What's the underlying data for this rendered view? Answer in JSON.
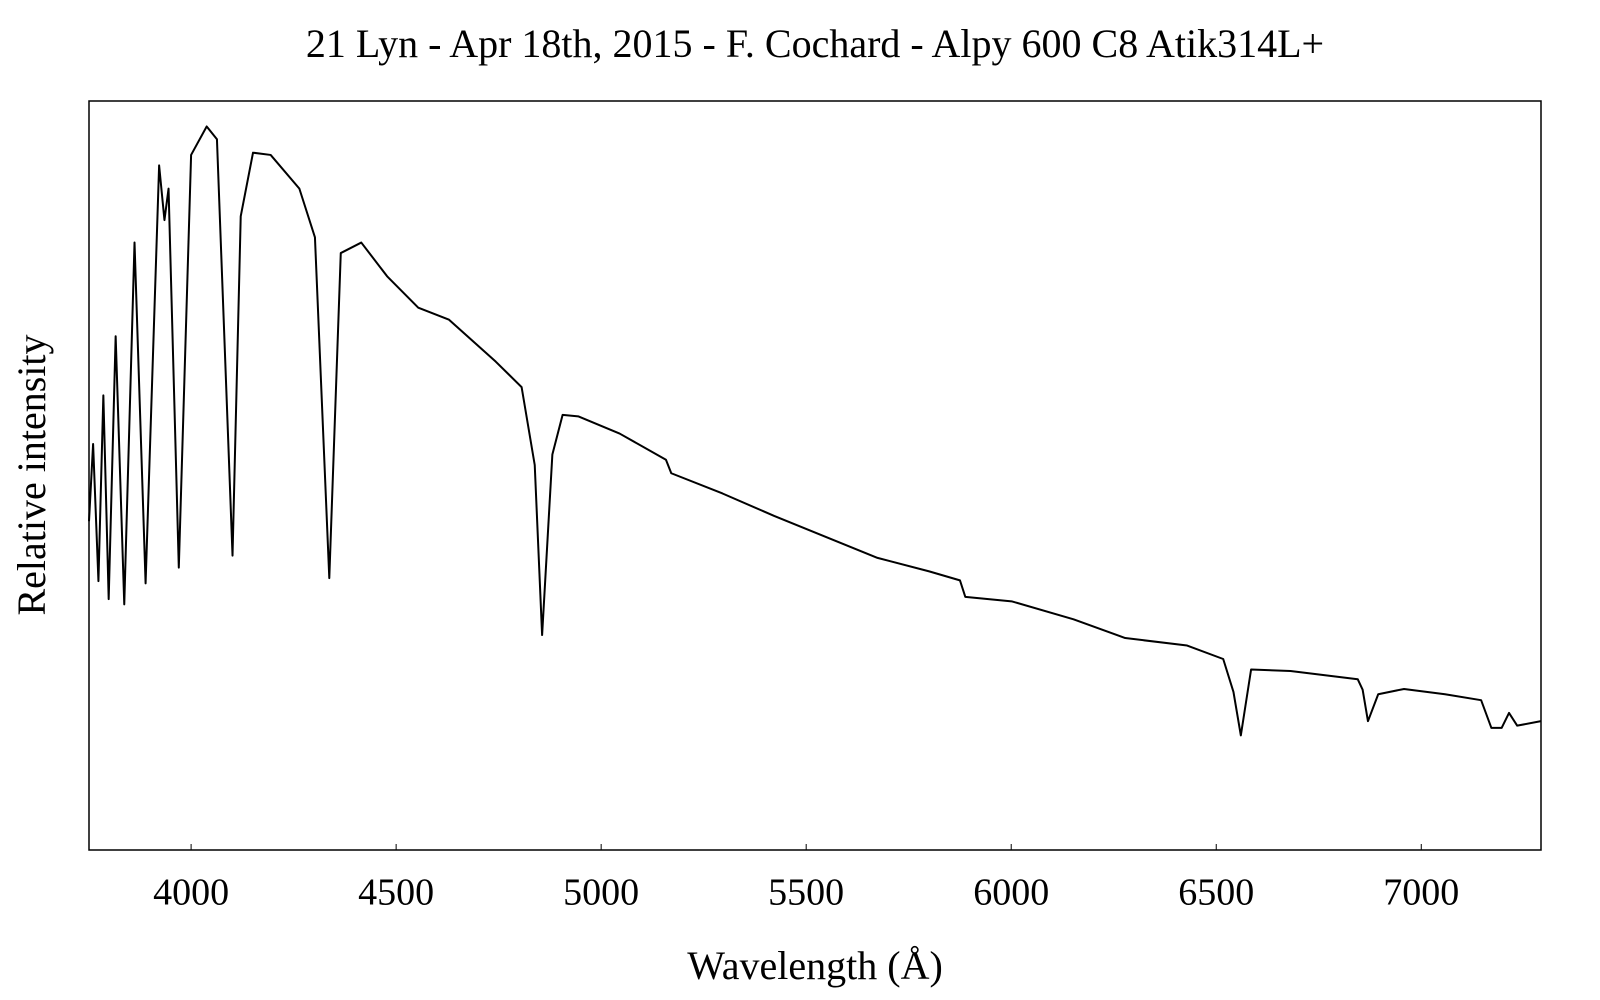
{
  "chart_data": {
    "type": "line",
    "title": "21 Lyn - Apr 18th, 2015 - F. Cochard - Alpy 600 C8 Atik314L+",
    "x_label": "Wavelength (Å)",
    "y_label": "Relative intensity",
    "xlim": [
      3751,
      7292
    ],
    "ylim": [
      0,
      1
    ],
    "xticks": [
      4000,
      4500,
      5000,
      5500,
      6000,
      6500,
      7000
    ],
    "color": "#000000",
    "x": [
      3751,
      3761,
      3774,
      3786,
      3799,
      3816,
      3837,
      3862,
      3889,
      3922,
      3935,
      3945,
      3970,
      4000,
      4038,
      4063,
      4101,
      4121,
      4151,
      4194,
      4264,
      4302,
      4337,
      4365,
      4415,
      4478,
      4554,
      4629,
      4743,
      4806,
      4838,
      4856,
      4881,
      4906,
      4944,
      5045,
      5158,
      5171,
      5296,
      5422,
      5548,
      5674,
      5800,
      5875,
      5888,
      6001,
      6152,
      6278,
      6429,
      6517,
      6542,
      6560,
      6585,
      6681,
      6845,
      6857,
      6870,
      6895,
      6958,
      7058,
      7146,
      7171,
      7196,
      7214,
      7234,
      7292
    ],
    "values": [
      0.439,
      0.542,
      0.359,
      0.607,
      0.335,
      0.686,
      0.328,
      0.811,
      0.356,
      0.914,
      0.841,
      0.883,
      0.377,
      0.928,
      0.966,
      0.949,
      0.393,
      0.846,
      0.931,
      0.928,
      0.883,
      0.818,
      0.363,
      0.797,
      0.811,
      0.766,
      0.724,
      0.708,
      0.652,
      0.618,
      0.514,
      0.287,
      0.528,
      0.581,
      0.579,
      0.556,
      0.521,
      0.503,
      0.476,
      0.446,
      0.418,
      0.39,
      0.372,
      0.36,
      0.338,
      0.332,
      0.308,
      0.283,
      0.273,
      0.255,
      0.211,
      0.153,
      0.241,
      0.239,
      0.228,
      0.214,
      0.172,
      0.208,
      0.215,
      0.208,
      0.2,
      0.163,
      0.163,
      0.183,
      0.166,
      0.172
    ]
  }
}
